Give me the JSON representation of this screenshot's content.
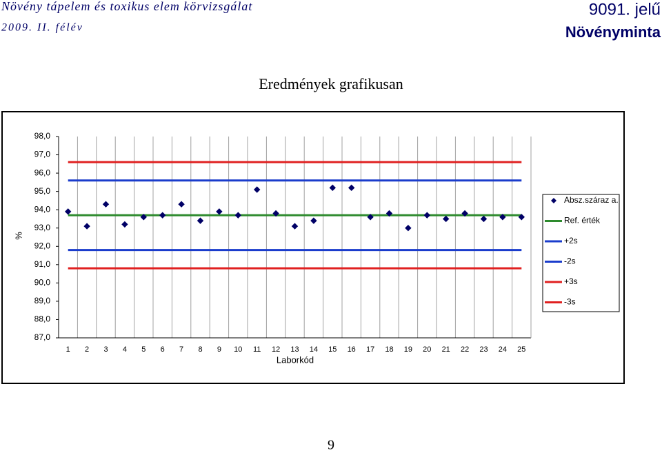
{
  "header": {
    "title": "Növény tápelem és toxikus elem körvizsgálat",
    "period": "2009. II. félév",
    "code": "9091. jelű",
    "sample": "Növényminta"
  },
  "section_title": "Eredmények grafikusan",
  "chart_data": {
    "type": "scatter",
    "ylabel": "%",
    "xlabel": "Laborkód",
    "categories": [
      "1",
      "2",
      "3",
      "4",
      "5",
      "6",
      "7",
      "8",
      "9",
      "10",
      "11",
      "12",
      "13",
      "14",
      "15",
      "16",
      "17",
      "18",
      "19",
      "20",
      "21",
      "22",
      "23",
      "24",
      "25"
    ],
    "ylim": [
      87,
      98
    ],
    "yticks": [
      {
        "value": 87,
        "label": "87,0"
      },
      {
        "value": 88,
        "label": "88,0"
      },
      {
        "value": 89,
        "label": "89,0"
      },
      {
        "value": 90,
        "label": "90,0"
      },
      {
        "value": 91,
        "label": "91,0"
      },
      {
        "value": 92,
        "label": "92,0"
      },
      {
        "value": 93,
        "label": "93,0"
      },
      {
        "value": 94,
        "label": "94,0"
      },
      {
        "value": 95,
        "label": "95,0"
      },
      {
        "value": 96,
        "label": "96,0"
      },
      {
        "value": 97,
        "label": "97,0"
      },
      {
        "value": 98,
        "label": "98,0"
      }
    ],
    "series": [
      {
        "name": "Absz.száraz a.",
        "kind": "points",
        "color": "#000066",
        "values": [
          93.9,
          93.1,
          94.3,
          93.2,
          93.6,
          93.7,
          94.3,
          93.4,
          93.9,
          93.7,
          95.1,
          93.8,
          93.1,
          93.4,
          95.2,
          95.2,
          93.6,
          93.8,
          93.0,
          93.7,
          93.5,
          93.8,
          93.5,
          93.6,
          93.6
        ]
      },
      {
        "name": "Ref. érték",
        "kind": "line",
        "color": "#2e8b2e",
        "values": [
          93.7,
          93.7,
          93.7,
          93.7,
          93.7,
          93.7,
          93.7,
          93.7,
          93.7,
          93.7,
          93.7,
          93.7,
          93.7,
          93.7,
          93.7,
          93.7,
          93.7,
          93.7,
          93.7,
          93.7,
          93.7,
          93.7,
          93.7,
          93.7,
          93.7
        ]
      },
      {
        "name": "+2s",
        "kind": "line",
        "color": "#1a3ccc",
        "values": [
          95.6,
          95.6,
          95.6,
          95.6,
          95.6,
          95.6,
          95.6,
          95.6,
          95.6,
          95.6,
          95.6,
          95.6,
          95.6,
          95.6,
          95.6,
          95.6,
          95.6,
          95.6,
          95.6,
          95.6,
          95.6,
          95.6,
          95.6,
          95.6,
          95.6
        ]
      },
      {
        "name": "-2s",
        "kind": "line",
        "color": "#1a3ccc",
        "values": [
          91.8,
          91.8,
          91.8,
          91.8,
          91.8,
          91.8,
          91.8,
          91.8,
          91.8,
          91.8,
          91.8,
          91.8,
          91.8,
          91.8,
          91.8,
          91.8,
          91.8,
          91.8,
          91.8,
          91.8,
          91.8,
          91.8,
          91.8,
          91.8,
          91.8
        ]
      },
      {
        "name": "+3s",
        "kind": "line",
        "color": "#e02020",
        "values": [
          96.6,
          96.6,
          96.6,
          96.6,
          96.6,
          96.6,
          96.6,
          96.6,
          96.6,
          96.6,
          96.6,
          96.6,
          96.6,
          96.6,
          96.6,
          96.6,
          96.6,
          96.6,
          96.6,
          96.6,
          96.6,
          96.6,
          96.6,
          96.6,
          96.6
        ]
      },
      {
        "name": "-3s",
        "kind": "line",
        "color": "#e02020",
        "values": [
          90.8,
          90.8,
          90.8,
          90.8,
          90.8,
          90.8,
          90.8,
          90.8,
          90.8,
          90.8,
          90.8,
          90.8,
          90.8,
          90.8,
          90.8,
          90.8,
          90.8,
          90.8,
          90.8,
          90.8,
          90.8,
          90.8,
          90.8,
          90.8,
          90.8
        ]
      }
    ]
  },
  "page_number": "9"
}
